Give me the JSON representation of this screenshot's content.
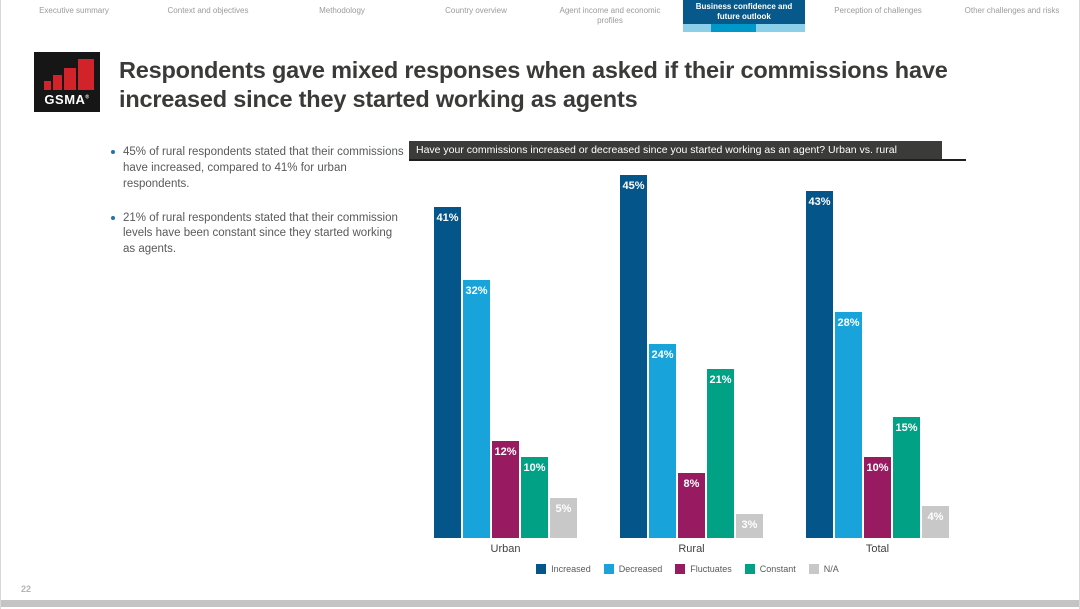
{
  "nav": {
    "items": [
      {
        "label": "Executive summary",
        "active": false
      },
      {
        "label": "Context and objectives",
        "active": false
      },
      {
        "label": "Methodology",
        "active": false
      },
      {
        "label": "Country overview",
        "active": false
      },
      {
        "label": "Agent income and economic profiles",
        "active": false
      },
      {
        "label": "Business confidence and future outlook",
        "active": true
      },
      {
        "label": "Perception of challenges",
        "active": false
      },
      {
        "label": "Other challenges and risks",
        "active": false
      }
    ],
    "active_bg": "#07598B",
    "active_strip_colors": [
      "#8CCFE8",
      "#0098C8",
      "#8CCFE8"
    ]
  },
  "logo": {
    "text": "GSMA",
    "reg_mark": "®"
  },
  "header": {
    "title_line1": "Respondents gave mixed responses when asked if their commissions have",
    "title_line2": "increased since they started working as agents"
  },
  "bullets": [
    "45% of rural respondents stated that their commissions have increased, compared to 41% for urban respondents.",
    "21% of rural respondents stated that their commission levels have been constant since they started working as agents."
  ],
  "chart_data": {
    "type": "bar",
    "title": "Have your commissions increased or decreased since you started working as an agent? Urban vs. rural",
    "categories": [
      "Urban",
      "Rural",
      "Total"
    ],
    "series": [
      {
        "name": "Increased",
        "color": "#04568A",
        "values": [
          41,
          45,
          43
        ]
      },
      {
        "name": "Decreased",
        "color": "#18A3DB",
        "values": [
          32,
          24,
          28
        ]
      },
      {
        "name": "Fluctuates",
        "color": "#981B61",
        "values": [
          12,
          8,
          10
        ]
      },
      {
        "name": "Constant",
        "color": "#00A184",
        "values": [
          10,
          21,
          15
        ]
      },
      {
        "name": "N/A",
        "color": "#C8C8C8",
        "values": [
          5,
          3,
          4
        ]
      }
    ],
    "value_suffix": "%",
    "ylim": [
      0,
      45
    ],
    "grid": false,
    "data_labels": true,
    "legend_position": "bottom"
  },
  "footer": {
    "page_number": "22"
  }
}
